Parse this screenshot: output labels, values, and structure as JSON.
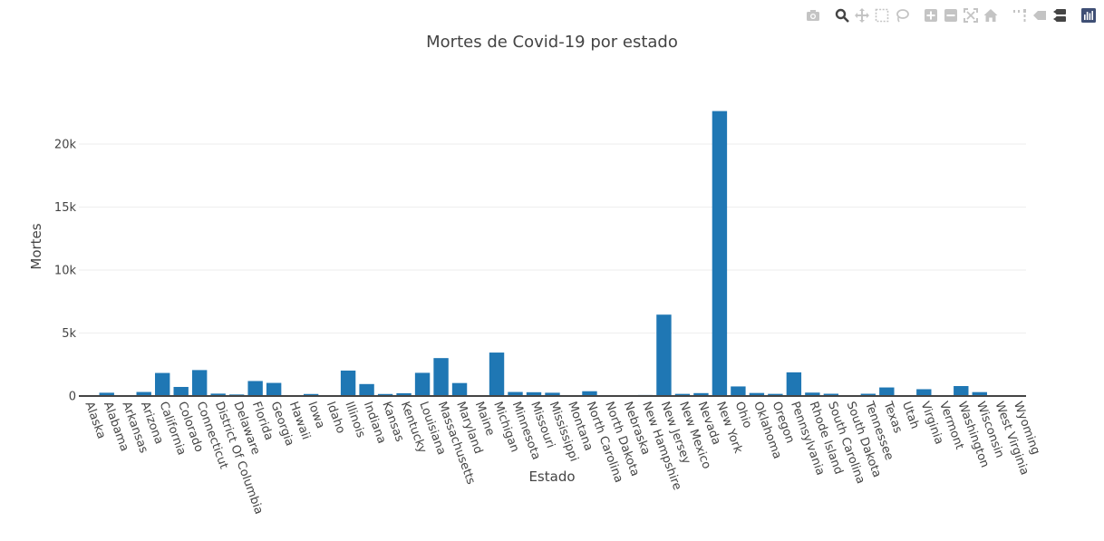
{
  "modebar": {
    "buttons": [
      {
        "name": "camera-icon",
        "group": 0
      },
      {
        "name": "zoom-icon",
        "group": 1
      },
      {
        "name": "pan-icon",
        "group": 1
      },
      {
        "name": "box-select-icon",
        "group": 1
      },
      {
        "name": "lasso-select-icon",
        "group": 1
      },
      {
        "name": "zoom-in-icon",
        "group": 2
      },
      {
        "name": "zoom-out-icon",
        "group": 2
      },
      {
        "name": "autoscale-icon",
        "group": 2
      },
      {
        "name": "reset-axes-icon",
        "group": 2
      },
      {
        "name": "spike-lines-icon",
        "group": 3
      },
      {
        "name": "hover-closest-icon",
        "group": 3
      },
      {
        "name": "hover-compare-icon",
        "group": 3
      },
      {
        "name": "plotly-logo-icon",
        "group": 4
      }
    ],
    "icon_color": "#c4c4c4",
    "active_icon_color": "#444444",
    "logo_color": "#3f4f75"
  },
  "chart_data": {
    "type": "bar",
    "title": "Mortes de Covid-19 por estado",
    "xlabel": "Estado",
    "ylabel": "Mortes",
    "ylim": [
      0,
      23500
    ],
    "yticks": [
      0,
      5000,
      10000,
      15000,
      20000
    ],
    "ytick_labels": [
      "0",
      "5k",
      "10k",
      "15k",
      "20k"
    ],
    "grid": true,
    "bar_color": "#1f77b4",
    "categories": [
      "Alaska",
      "Alabama",
      "Arkansas",
      "Arizona",
      "California",
      "Colorado",
      "Connecticut",
      "District Of Columbia",
      "Delaware",
      "Florida",
      "Georgia",
      "Hawaii",
      "Iowa",
      "Idaho",
      "Illinois",
      "Indiana",
      "Kansas",
      "Kentucky",
      "Louisiana",
      "Massachusetts",
      "Maryland",
      "Maine",
      "Michigan",
      "Minnesota",
      "Missouri",
      "Mississippi",
      "Montana",
      "North Carolina",
      "North Dakota",
      "Nebraska",
      "New Hampshire",
      "New Jersey",
      "New Mexico",
      "Nevada",
      "New York",
      "Ohio",
      "Oklahoma",
      "Oregon",
      "Pennsylvania",
      "Rhode Island",
      "South Carolina",
      "South Dakota",
      "Tennessee",
      "Texas",
      "Utah",
      "Virginia",
      "Vermont",
      "Washington",
      "Wisconsin",
      "West Virginia",
      "Wyoming"
    ],
    "values": [
      10,
      260,
      60,
      320,
      1830,
      720,
      2060,
      190,
      120,
      1190,
      1040,
      20,
      160,
      50,
      2020,
      950,
      160,
      220,
      1840,
      3010,
      1030,
      60,
      3450,
      320,
      300,
      260,
      20,
      380,
      20,
      70,
      80,
      6460,
      170,
      230,
      22620,
      760,
      240,
      170,
      1880,
      270,
      180,
      20,
      180,
      680,
      60,
      540,
      40,
      790,
      310,
      60,
      10
    ]
  }
}
